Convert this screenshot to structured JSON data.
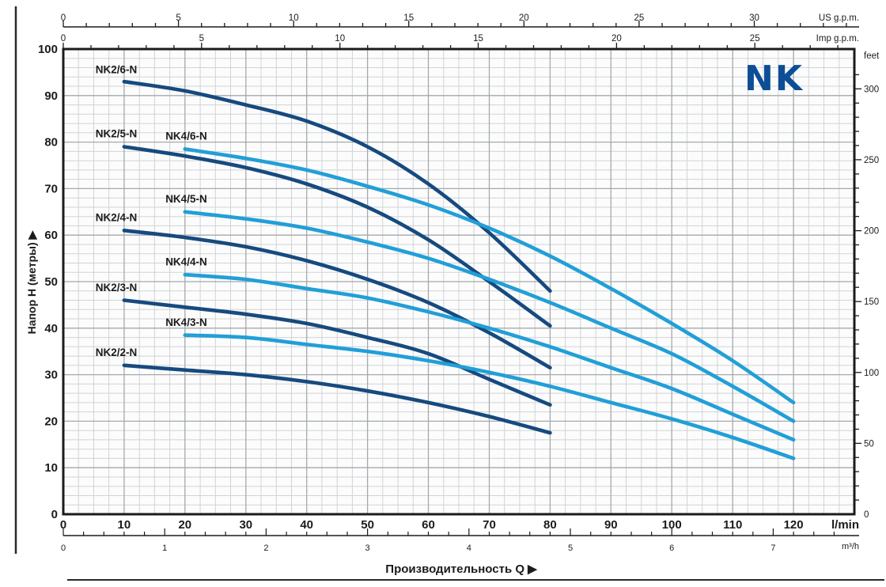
{
  "logo": {
    "text": "NK",
    "color": "#0d4e96"
  },
  "colors": {
    "dark_curve": "#164a7f",
    "light_curve": "#219fd8",
    "grid_minor": "#d0d3d6",
    "grid_major": "#a5a9ad",
    "axis": "#1b1b1b",
    "plot_bg": "#fcfcfc"
  },
  "chart_data": {
    "type": "line",
    "x_axis": {
      "unit": "l/min",
      "min": 0,
      "max": 130,
      "major_tick_step": 10,
      "minor_tick_step": 2.5,
      "labels": [
        0,
        10,
        20,
        30,
        40,
        50,
        60,
        70,
        80,
        90,
        100,
        110,
        120
      ]
    },
    "x_axis_m3h": {
      "unit": "m³/h",
      "labels": [
        0,
        1,
        2,
        3,
        4,
        5,
        6,
        7
      ],
      "lmin_per_unit": 16.6667,
      "minor_tick_step": 0.2,
      "max_tick": 7.6
    },
    "x_axis_us_gpm": {
      "unit": "US g.p.m.",
      "labels": [
        0,
        5,
        10,
        15,
        20,
        25,
        30
      ],
      "lmin_per_unit": 3.785,
      "minor_tick_step": 1,
      "max_tick": 34
    },
    "x_axis_imp_gpm": {
      "unit": "Imp g.p.m.",
      "labels": [
        0,
        5,
        10,
        15,
        20,
        25
      ],
      "lmin_per_unit": 4.546,
      "minor_tick_step": 1,
      "max_tick": 28
    },
    "y_axis": {
      "label": "Напор H (метры)",
      "min": 0,
      "max": 100,
      "major_tick_step": 10,
      "minor_tick_step": 2,
      "labels": [
        0,
        10,
        20,
        30,
        40,
        50,
        60,
        70,
        80,
        90,
        100
      ]
    },
    "y_axis_feet": {
      "unit": "feet",
      "labels": [
        50,
        100,
        150,
        200,
        250,
        300
      ],
      "zero_label": "0",
      "m_per_unit": 0.3048,
      "minor_tick_step": 10,
      "max_tick": 310
    },
    "xlabel": "Производительность Q",
    "axis_arrow": "▶",
    "series": [
      {
        "name": "NK2/6-N",
        "color_key": "dark_curve",
        "label_pos": [
          5.3,
          94.8
        ],
        "points": [
          [
            10,
            93
          ],
          [
            20,
            91
          ],
          [
            30,
            88
          ],
          [
            40,
            84.5
          ],
          [
            50,
            79
          ],
          [
            60,
            71
          ],
          [
            70,
            60.5
          ],
          [
            80,
            48
          ]
        ]
      },
      {
        "name": "NK2/5-N",
        "color_key": "dark_curve",
        "label_pos": [
          5.3,
          81
        ],
        "points": [
          [
            10,
            79
          ],
          [
            20,
            77
          ],
          [
            30,
            74.5
          ],
          [
            40,
            71
          ],
          [
            50,
            66
          ],
          [
            60,
            59
          ],
          [
            70,
            50
          ],
          [
            80,
            40.5
          ]
        ]
      },
      {
        "name": "NK2/4-N",
        "color_key": "dark_curve",
        "label_pos": [
          5.3,
          63
        ],
        "points": [
          [
            10,
            61
          ],
          [
            20,
            59.5
          ],
          [
            30,
            57.5
          ],
          [
            40,
            54.5
          ],
          [
            50,
            50.5
          ],
          [
            60,
            45.5
          ],
          [
            70,
            39
          ],
          [
            80,
            31.5
          ]
        ]
      },
      {
        "name": "NK2/3-N",
        "color_key": "dark_curve",
        "label_pos": [
          5.3,
          48
        ],
        "points": [
          [
            10,
            46
          ],
          [
            20,
            44.5
          ],
          [
            30,
            43
          ],
          [
            40,
            41
          ],
          [
            50,
            38
          ],
          [
            60,
            34.5
          ],
          [
            70,
            29
          ],
          [
            80,
            23.5
          ]
        ]
      },
      {
        "name": "NK2/2-N",
        "color_key": "dark_curve",
        "label_pos": [
          5.3,
          34
        ],
        "points": [
          [
            10,
            32
          ],
          [
            20,
            31
          ],
          [
            30,
            30
          ],
          [
            40,
            28.5
          ],
          [
            50,
            26.5
          ],
          [
            60,
            24
          ],
          [
            70,
            21
          ],
          [
            80,
            17.5
          ]
        ]
      },
      {
        "name": "NK4/6-N",
        "color_key": "light_curve",
        "label_pos": [
          16.8,
          80.5
        ],
        "points": [
          [
            20,
            78.5
          ],
          [
            30,
            76.5
          ],
          [
            40,
            74
          ],
          [
            50,
            70.5
          ],
          [
            60,
            66.5
          ],
          [
            70,
            61.5
          ],
          [
            80,
            55.5
          ],
          [
            90,
            48.5
          ],
          [
            100,
            41
          ],
          [
            110,
            33
          ],
          [
            120,
            24
          ]
        ]
      },
      {
        "name": "NK4/5-N",
        "color_key": "light_curve",
        "label_pos": [
          16.8,
          67
        ],
        "points": [
          [
            20,
            65
          ],
          [
            30,
            63.5
          ],
          [
            40,
            61.5
          ],
          [
            50,
            58.5
          ],
          [
            60,
            55
          ],
          [
            70,
            50.5
          ],
          [
            80,
            45.5
          ],
          [
            90,
            40
          ],
          [
            100,
            34.5
          ],
          [
            110,
            27.5
          ],
          [
            120,
            20
          ]
        ]
      },
      {
        "name": "NK4/4-N",
        "color_key": "light_curve",
        "label_pos": [
          16.8,
          53.5
        ],
        "points": [
          [
            20,
            51.5
          ],
          [
            30,
            50.5
          ],
          [
            40,
            48.5
          ],
          [
            50,
            46.5
          ],
          [
            60,
            43.5
          ],
          [
            70,
            40
          ],
          [
            80,
            36
          ],
          [
            90,
            31.5
          ],
          [
            100,
            27
          ],
          [
            110,
            21.5
          ],
          [
            120,
            16
          ]
        ]
      },
      {
        "name": "NK4/3-N",
        "color_key": "light_curve",
        "label_pos": [
          16.8,
          40.5
        ],
        "points": [
          [
            20,
            38.5
          ],
          [
            30,
            38
          ],
          [
            40,
            36.5
          ],
          [
            50,
            35
          ],
          [
            60,
            33
          ],
          [
            70,
            30.5
          ],
          [
            80,
            27.5
          ],
          [
            90,
            24
          ],
          [
            100,
            20.5
          ],
          [
            110,
            16.5
          ],
          [
            120,
            12
          ]
        ]
      }
    ]
  }
}
